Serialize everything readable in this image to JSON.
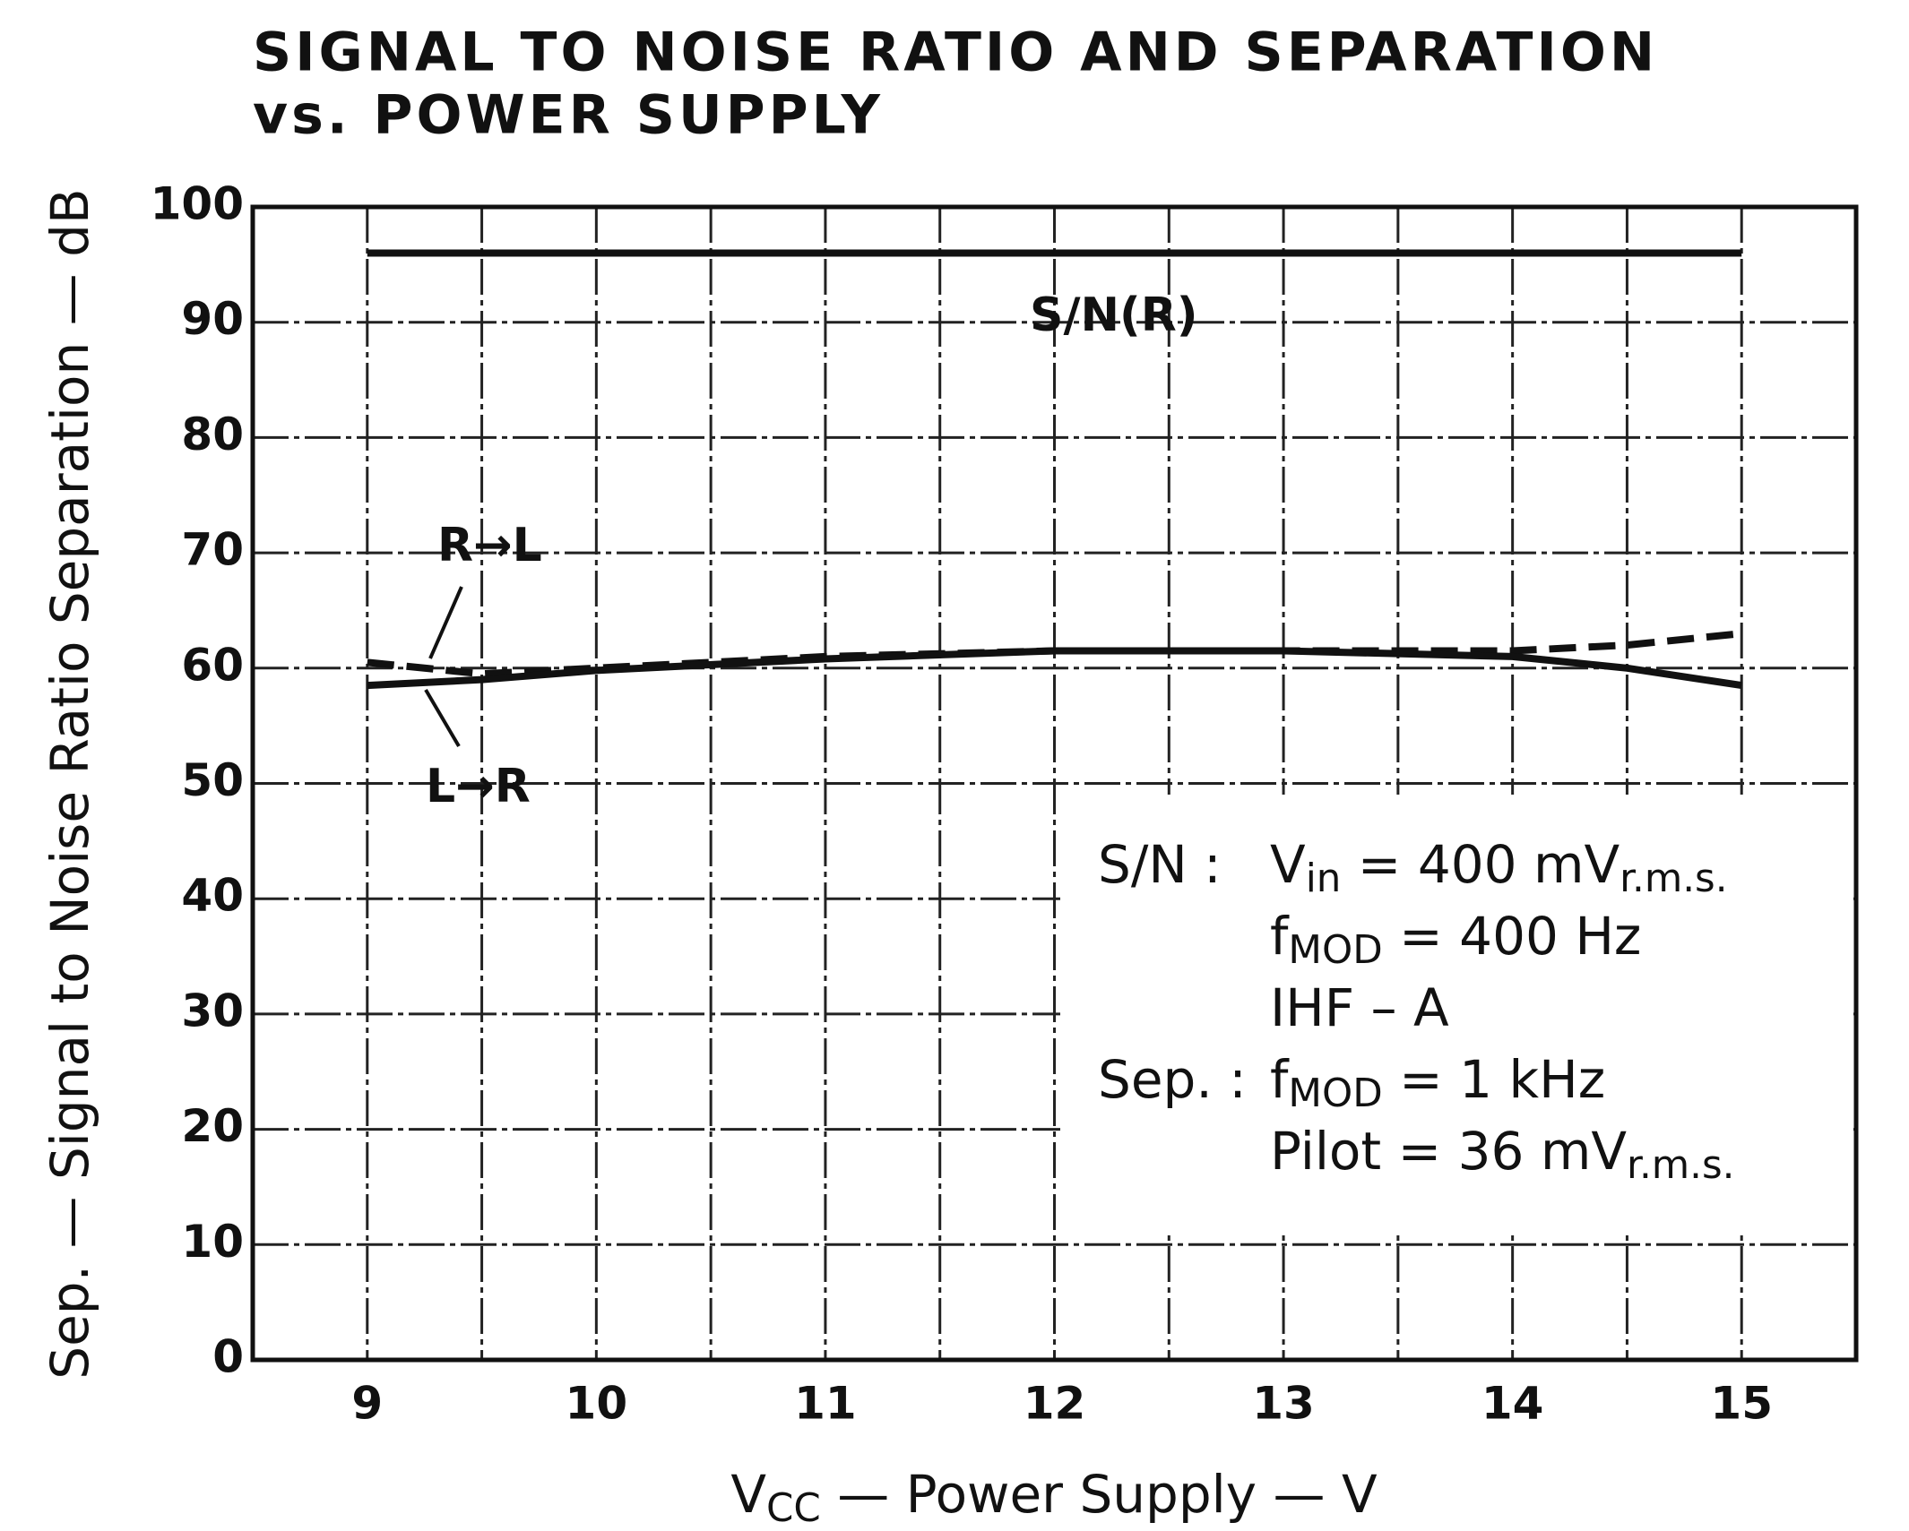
{
  "chart_data": {
    "type": "line",
    "title": [
      "SIGNAL TO NOISE RATIO AND SEPARATION",
      "vs. POWER SUPPLY"
    ],
    "x_label": [
      "V",
      "CC",
      " — Power Supply — V"
    ],
    "y_label": "Sep. — Signal to Noise Ratio Separation — dB",
    "x": [
      9,
      9.5,
      10,
      11,
      12,
      13,
      14,
      14.5,
      15
    ],
    "series": [
      {
        "name": "S/N(R)",
        "color": "#111111",
        "dash": false,
        "values": [
          96,
          96,
          96,
          96,
          96,
          96,
          96,
          96,
          96
        ]
      },
      {
        "name": "R→L",
        "color": "#111111",
        "dash": true,
        "values": [
          60.5,
          59.5,
          60,
          61,
          61.5,
          61.5,
          61.5,
          62,
          63
        ]
      },
      {
        "name": "L→R",
        "color": "#111111",
        "dash": false,
        "values": [
          58.5,
          59,
          59.8,
          60.8,
          61.5,
          61.5,
          61,
          60,
          58.5
        ]
      }
    ],
    "xlim": [
      8.5,
      15.5
    ],
    "xticks": [
      9,
      10,
      11,
      12,
      13,
      14,
      15
    ],
    "x_gridlines": [
      9,
      9.5,
      10,
      10.5,
      11,
      11.5,
      12,
      12.5,
      13,
      13.5,
      14,
      14.5,
      15
    ],
    "ylim": [
      0,
      100
    ],
    "yticks": [
      0,
      10,
      20,
      30,
      40,
      50,
      60,
      70,
      80,
      90,
      100
    ],
    "grid": true,
    "notes": [
      {
        "label": "S/N :",
        "lines": [
          [
            "V",
            "in",
            " = 400 mV",
            "r.m.s."
          ],
          [
            "f",
            "MOD",
            " = 400 Hz"
          ],
          [
            "IHF – A"
          ]
        ]
      },
      {
        "label": "Sep. :",
        "lines": [
          [
            "f",
            "MOD",
            " = 1 kHz"
          ],
          [
            "Pilot = 36 mV",
            "r.m.s."
          ]
        ]
      }
    ]
  }
}
